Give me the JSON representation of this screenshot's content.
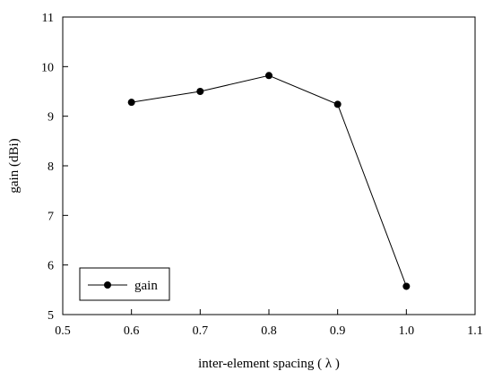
{
  "chart_data": {
    "type": "line",
    "xlabel": "inter-element spacing ( λ )",
    "ylabel": "gain (dBi)",
    "xlim": [
      0.5,
      1.1
    ],
    "ylim": [
      5,
      11
    ],
    "x_ticks": [
      "0.5",
      "0.6",
      "0.7",
      "0.8",
      "0.9",
      "1.0",
      "1.1"
    ],
    "y_ticks": [
      "5",
      "6",
      "7",
      "8",
      "9",
      "10",
      "11"
    ],
    "grid": false,
    "legend_position": "bottom-left",
    "series": [
      {
        "name": "gain",
        "x": [
          0.6,
          0.7,
          0.8,
          0.9,
          1.0
        ],
        "y": [
          9.28,
          9.5,
          9.82,
          9.24,
          5.57
        ],
        "color": "#000000",
        "marker": "circle"
      }
    ]
  }
}
